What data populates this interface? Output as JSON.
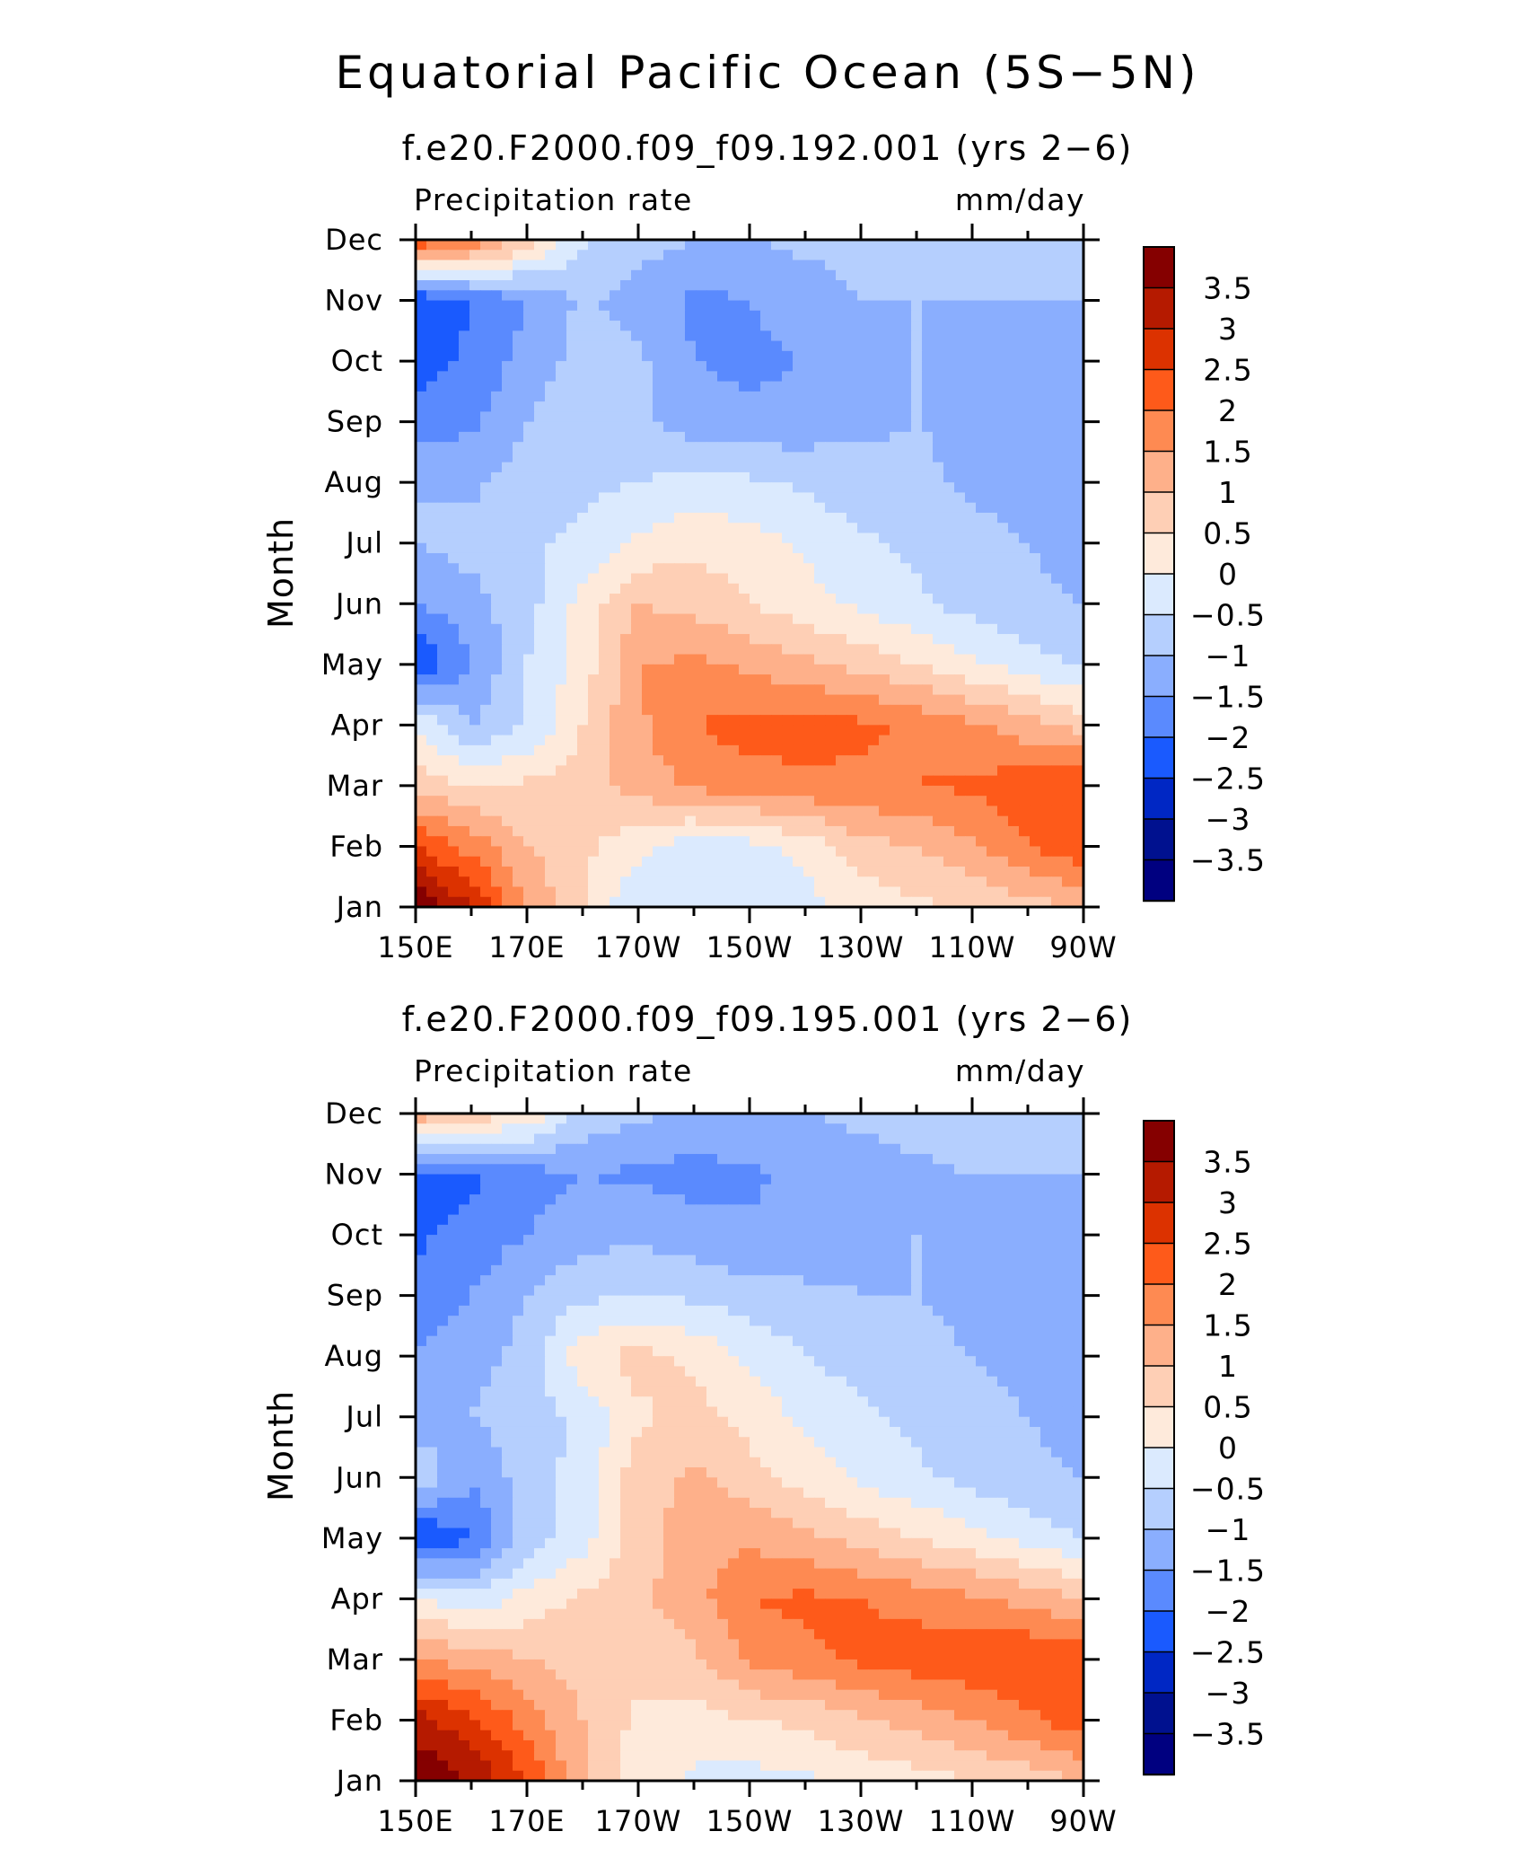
{
  "title": "Equatorial Pacific Ocean (5S−5N)",
  "colorbar": {
    "labels": [
      "3.5",
      "3",
      "2.5",
      "2",
      "1.5",
      "1",
      "0.5",
      "0",
      "−0.5",
      "−1",
      "−1.5",
      "−2",
      "−2.5",
      "−3",
      "−3.5"
    ],
    "colors": [
      "#850000",
      "#b51a00",
      "#dc3200",
      "#fe5a1a",
      "#fe8a52",
      "#feb08a",
      "#fecfb5",
      "#feeadb",
      "#dbeafe",
      "#b5cffe",
      "#8aaefe",
      "#5a8afe",
      "#1a5afe",
      "#0027c4",
      "#00118f",
      "#000080"
    ]
  },
  "chart_data": [
    {
      "type": "heatmap",
      "title": "f.e20.F2000.f09_f09.192.001 (yrs 2−6)",
      "left_label": "Precipitation rate",
      "right_label": "mm/day",
      "ylabel": "Month",
      "x_ticks": [
        "150E",
        "170E",
        "170W",
        "150W",
        "130W",
        "110W",
        "90W"
      ],
      "y_ticks": [
        "Jan",
        "Feb",
        "Mar",
        "Apr",
        "May",
        "Jun",
        "Jul",
        "Aug",
        "Sep",
        "Oct",
        "Nov",
        "Dec"
      ],
      "xlim": [
        150,
        270
      ],
      "ylim": [
        1,
        12
      ],
      "levels": [
        -3.5,
        -3,
        -2.5,
        -2,
        -1.5,
        -1,
        -0.5,
        0,
        0.5,
        1,
        1.5,
        2,
        2.5,
        3,
        3.5
      ],
      "values": [
        [
          4.0,
          3.0,
          1.5,
          0.5,
          -0.5,
          -0.4,
          -0.3,
          -0.2,
          0.2,
          0.4,
          0.6,
          0.8,
          1.0
        ],
        [
          2.5,
          1.8,
          1.0,
          0.6,
          0.2,
          -0.3,
          -0.2,
          0.2,
          0.8,
          1.0,
          1.4,
          2.0,
          2.4
        ],
        [
          0.8,
          0.5,
          0.6,
          0.8,
          1.2,
          1.6,
          1.8,
          1.9,
          1.9,
          2.0,
          2.1,
          2.3,
          2.5
        ],
        [
          0.0,
          -1.0,
          -0.5,
          0.5,
          1.4,
          2.0,
          2.2,
          2.2,
          2.1,
          1.9,
          1.6,
          1.2,
          0.8
        ],
        [
          -2.5,
          -1.5,
          -0.5,
          0.2,
          1.5,
          1.6,
          1.4,
          1.1,
          0.8,
          0.5,
          0.1,
          -0.3,
          -0.6
        ],
        [
          -1.5,
          -1.2,
          -0.7,
          0.2,
          1.0,
          0.8,
          0.5,
          0.2,
          -0.1,
          -0.4,
          -0.7,
          -0.9,
          -1.0
        ],
        [
          -1.0,
          -0.8,
          -0.6,
          -0.4,
          0.1,
          0.4,
          0.2,
          -0.1,
          -0.4,
          -0.6,
          -0.8,
          -1.0,
          -1.2
        ],
        [
          -1.0,
          -1.1,
          -0.8,
          -0.6,
          -0.5,
          -0.3,
          -0.4,
          -0.6,
          -0.8,
          -0.9,
          -1.1,
          -1.3,
          -1.5
        ],
        [
          -1.8,
          -1.6,
          -1.0,
          -0.5,
          -0.9,
          -1.3,
          -1.4,
          -1.3,
          -1.1,
          -1.0,
          -1.1,
          -1.3,
          -1.5
        ],
        [
          -2.2,
          -1.9,
          -1.3,
          -0.8,
          -0.9,
          -1.5,
          -1.6,
          -1.5,
          -1.2,
          -1.0,
          -1.1,
          -1.2,
          -1.3
        ],
        [
          -2.5,
          -2.0,
          -1.5,
          -0.9,
          -1.2,
          -1.6,
          -1.5,
          -1.2,
          -1.0,
          -1.0,
          -1.0,
          -1.0,
          -1.0
        ],
        [
          2.5,
          2.0,
          0.8,
          -0.4,
          -0.8,
          -1.0,
          -1.0,
          -0.9,
          -0.9,
          -0.9,
          -0.9,
          -0.9,
          -0.8
        ]
      ]
    },
    {
      "type": "heatmap",
      "title": "f.e20.F2000.f09_f09.195.001 (yrs 2−6)",
      "left_label": "Precipitation rate",
      "right_label": "mm/day",
      "ylabel": "Month",
      "x_ticks": [
        "150E",
        "170E",
        "170W",
        "150W",
        "130W",
        "110W",
        "90W"
      ],
      "y_ticks": [
        "Jan",
        "Feb",
        "Mar",
        "Apr",
        "May",
        "Jun",
        "Jul",
        "Aug",
        "Sep",
        "Oct",
        "Nov",
        "Dec"
      ],
      "xlim": [
        150,
        270
      ],
      "ylim": [
        1,
        12
      ],
      "levels": [
        -3.5,
        -3,
        -2.5,
        -2,
        -1.5,
        -1,
        -0.5,
        0,
        0.5,
        1,
        1.5,
        2,
        2.5,
        3,
        3.5
      ],
      "values": [
        [
          4.0,
          3.5,
          2.5,
          1.0,
          0.2,
          -0.1,
          -0.2,
          -0.1,
          0.2,
          0.3,
          0.5,
          0.7,
          1.0
        ],
        [
          3.2,
          2.6,
          1.8,
          1.0,
          0.4,
          0.3,
          0.5,
          0.6,
          0.9,
          1.2,
          1.5,
          1.9,
          2.3
        ],
        [
          1.5,
          1.3,
          1.0,
          0.8,
          0.7,
          0.9,
          1.6,
          1.9,
          2.1,
          2.3,
          2.4,
          2.5,
          2.5
        ],
        [
          0.1,
          -0.4,
          0.2,
          0.6,
          0.9,
          1.3,
          2.0,
          2.1,
          2.0,
          1.8,
          1.6,
          1.3,
          1.0
        ],
        [
          -2.6,
          -2.0,
          -0.8,
          -0.2,
          0.7,
          1.3,
          1.4,
          1.1,
          0.8,
          0.5,
          0.2,
          -0.2,
          -0.5
        ],
        [
          -0.6,
          -1.4,
          -0.8,
          -0.3,
          0.8,
          1.1,
          0.7,
          0.3,
          -0.1,
          -0.4,
          -0.7,
          -0.9,
          -1.0
        ],
        [
          -1.3,
          -1.0,
          -0.7,
          -0.4,
          0.4,
          0.7,
          0.3,
          -0.1,
          -0.4,
          -0.6,
          -0.8,
          -1.0,
          -1.2
        ],
        [
          -1.4,
          -1.2,
          -0.8,
          0.3,
          0.7,
          0.4,
          -0.1,
          -0.5,
          -0.7,
          -0.9,
          -1.0,
          -1.2,
          -1.4
        ],
        [
          -1.9,
          -1.5,
          -1.0,
          -0.6,
          -0.5,
          -0.6,
          -0.8,
          -0.9,
          -1.0,
          -1.0,
          -1.1,
          -1.2,
          -1.5
        ],
        [
          -2.1,
          -1.8,
          -1.5,
          -1.2,
          -1.1,
          -1.3,
          -1.4,
          -1.3,
          -1.1,
          -1.0,
          -1.0,
          -1.2,
          -1.3
        ],
        [
          -2.3,
          -2.1,
          -1.7,
          -1.5,
          -1.6,
          -1.7,
          -1.6,
          -1.4,
          -1.2,
          -1.1,
          -1.0,
          -1.0,
          -1.0
        ],
        [
          1.4,
          0.9,
          0.4,
          -0.6,
          -0.9,
          -1.1,
          -1.0,
          -1.0,
          -0.9,
          -0.8,
          -0.7,
          -0.6,
          -0.6
        ]
      ]
    }
  ]
}
